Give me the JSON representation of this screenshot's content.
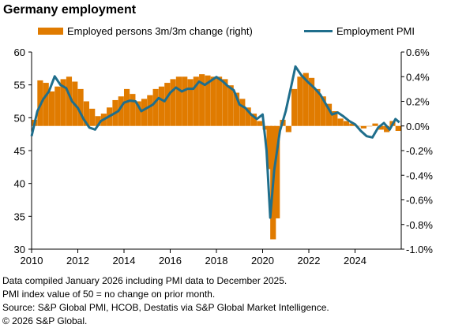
{
  "title": "Germany employment",
  "legend": {
    "bar_label": "Employed persons 3m/3m change (right)",
    "line_label": "Employment PMI"
  },
  "footnotes": [
    "Data compiled January 2026 including PMI data to December 2025.",
    "PMI index value of 50 = no change on prior month.",
    "Source: S&P Global PMI,  HCOB, Destatis via S&P Global Market Intelligence.",
    "© 2026 S&P Global."
  ],
  "colors": {
    "bar": "#e07b00",
    "line": "#1f6e8c",
    "axis": "#000000",
    "background": "#ffffff"
  },
  "chart_data": {
    "type": "bar+line",
    "title": "Germany employment",
    "x_ticks": [
      "2010",
      "2012",
      "2014",
      "2016",
      "2018",
      "2020",
      "2022",
      "2024"
    ],
    "xlim": [
      2010.0,
      2026.0
    ],
    "left_axis": {
      "ylim": [
        30,
        60
      ],
      "ticks": [
        "30",
        "35",
        "40",
        "45",
        "50",
        "55",
        "60"
      ]
    },
    "right_axis": {
      "ylim": [
        -1.0,
        0.6
      ],
      "ticks": [
        "-1.0%",
        "-0.8%",
        "-0.6%",
        "-0.4%",
        "-0.2%",
        "0.0%",
        "0.2%",
        "0.4%",
        "0.6%"
      ]
    },
    "grid": false,
    "legend_position": "top",
    "series": [
      {
        "name": "Employed persons 3m/3m change (right)",
        "kind": "bar",
        "axis": "right",
        "x": [
          2010.0,
          2010.25,
          2010.5,
          2010.75,
          2011.0,
          2011.25,
          2011.5,
          2011.75,
          2012.0,
          2012.25,
          2012.5,
          2012.75,
          2013.0,
          2013.25,
          2013.5,
          2013.75,
          2014.0,
          2014.25,
          2014.5,
          2014.75,
          2015.0,
          2015.25,
          2015.5,
          2015.75,
          2016.0,
          2016.25,
          2016.5,
          2016.75,
          2017.0,
          2017.25,
          2017.5,
          2017.75,
          2018.0,
          2018.25,
          2018.5,
          2018.75,
          2019.0,
          2019.25,
          2019.5,
          2019.75,
          2020.0,
          2020.17,
          2020.33,
          2020.5,
          2020.75,
          2021.0,
          2021.25,
          2021.5,
          2021.75,
          2022.0,
          2022.25,
          2022.5,
          2022.75,
          2023.0,
          2023.25,
          2023.5,
          2023.75,
          2024.0,
          2024.25,
          2024.5,
          2024.75,
          2025.0,
          2025.25,
          2025.5,
          2025.75
        ],
        "values": [
          0.05,
          0.37,
          0.35,
          0.28,
          0.32,
          0.38,
          0.4,
          0.36,
          0.3,
          0.2,
          0.14,
          0.08,
          0.1,
          0.15,
          0.21,
          0.24,
          0.3,
          0.26,
          0.2,
          0.22,
          0.25,
          0.3,
          0.32,
          0.35,
          0.38,
          0.4,
          0.4,
          0.38,
          0.4,
          0.42,
          0.41,
          0.4,
          0.4,
          0.38,
          0.33,
          0.27,
          0.22,
          0.15,
          0.1,
          0.04,
          -0.03,
          -0.35,
          -0.92,
          -0.75,
          0.05,
          -0.05,
          0.3,
          0.4,
          0.43,
          0.39,
          0.3,
          0.24,
          0.18,
          0.12,
          0.06,
          0.04,
          0.02,
          0.0,
          -0.02,
          0.0,
          0.02,
          -0.03,
          -0.05,
          0.04,
          -0.04
        ]
      },
      {
        "name": "Employment PMI",
        "kind": "line",
        "axis": "left",
        "x": [
          2010.0,
          2010.25,
          2010.5,
          2010.75,
          2011.0,
          2011.25,
          2011.5,
          2011.75,
          2012.0,
          2012.25,
          2012.5,
          2012.75,
          2013.0,
          2013.25,
          2013.5,
          2013.75,
          2014.0,
          2014.25,
          2014.5,
          2014.75,
          2015.0,
          2015.25,
          2015.5,
          2015.75,
          2016.0,
          2016.25,
          2016.5,
          2016.75,
          2017.0,
          2017.25,
          2017.5,
          2017.75,
          2018.0,
          2018.25,
          2018.5,
          2018.75,
          2019.0,
          2019.25,
          2019.5,
          2019.75,
          2020.0,
          2020.17,
          2020.33,
          2020.5,
          2020.75,
          2021.0,
          2021.25,
          2021.42,
          2021.67,
          2022.0,
          2022.25,
          2022.5,
          2022.75,
          2023.0,
          2023.25,
          2023.5,
          2023.75,
          2024.0,
          2024.25,
          2024.5,
          2024.75,
          2025.0,
          2025.25,
          2025.5,
          2025.75,
          2025.92
        ],
        "values": [
          47.2,
          51.0,
          52.8,
          54.0,
          56.3,
          55.0,
          54.5,
          52.5,
          51.5,
          49.8,
          48.5,
          48.2,
          49.5,
          50.0,
          50.5,
          51.0,
          52.3,
          52.6,
          52.5,
          51.0,
          51.5,
          52.0,
          53.0,
          52.5,
          53.8,
          54.6,
          54.0,
          54.4,
          54.4,
          55.5,
          55.0,
          55.6,
          56.2,
          55.6,
          54.8,
          54.2,
          52.0,
          51.5,
          50.5,
          49.8,
          50.5,
          45.0,
          34.8,
          42.0,
          48.0,
          51.0,
          55.0,
          57.8,
          56.5,
          55.3,
          54.5,
          53.5,
          52.0,
          50.5,
          50.8,
          50.2,
          49.5,
          49.0,
          48.0,
          47.2,
          47.0,
          48.5,
          49.2,
          48.2,
          49.8,
          49.3
        ]
      }
    ]
  }
}
